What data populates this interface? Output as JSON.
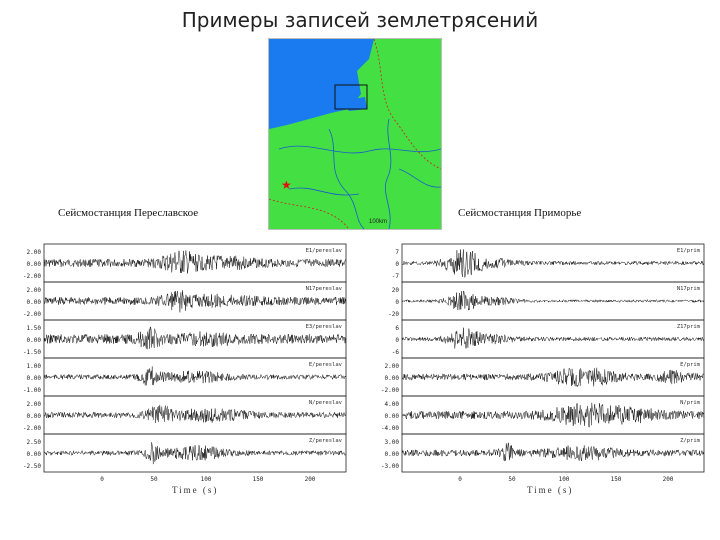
{
  "title": "Примеры записей землетрясений",
  "map": {
    "land_color": "#44e043",
    "water_color": "#1a7af0",
    "marker": "★",
    "scale_label": "100km"
  },
  "stations": {
    "left": {
      "label": "Сейсмостанция Переславское",
      "time_label": "Time (s)",
      "x_ticks": [
        "0",
        "50",
        "100",
        "150",
        "200"
      ],
      "traces": [
        {
          "code": "E1/pereslav",
          "ticks": [
            "2.00",
            "0.00",
            "-2.00"
          ]
        },
        {
          "code": "N17pereslav",
          "ticks": [
            "2.00",
            "0.00",
            "-2.00"
          ]
        },
        {
          "code": "E3/pereslav",
          "ticks": [
            "1.50",
            "0.00",
            "-1.50"
          ]
        },
        {
          "code": "E/pereslav",
          "ticks": [
            "1.00",
            "0.00",
            "-1.00"
          ]
        },
        {
          "code": "N/pereslav",
          "ticks": [
            "2.00",
            "0.00",
            "-2.00"
          ]
        },
        {
          "code": "Z/pereslav",
          "ticks": [
            "2.50",
            "0.00",
            "-2.50"
          ]
        }
      ]
    },
    "right": {
      "label": "Сейсмостанция Приморье",
      "time_label": "Time (s)",
      "x_ticks": [
        "0",
        "50",
        "100",
        "150",
        "200"
      ],
      "traces": [
        {
          "code": "E1/prim",
          "ticks": [
            "7",
            "0",
            "-7"
          ]
        },
        {
          "code": "N17prim",
          "ticks": [
            "20",
            "0",
            "-20"
          ]
        },
        {
          "code": "Z17prim",
          "ticks": [
            "6",
            "0",
            "-6"
          ]
        },
        {
          "code": "E/prim",
          "ticks": [
            "2.00",
            "0.00",
            "-2.00"
          ]
        },
        {
          "code": "N/prim",
          "ticks": [
            "4.00",
            "0.00",
            "-4.00"
          ]
        },
        {
          "code": "Z/prim",
          "ticks": [
            "3.00",
            "0.00",
            "-3.00"
          ]
        }
      ]
    }
  }
}
